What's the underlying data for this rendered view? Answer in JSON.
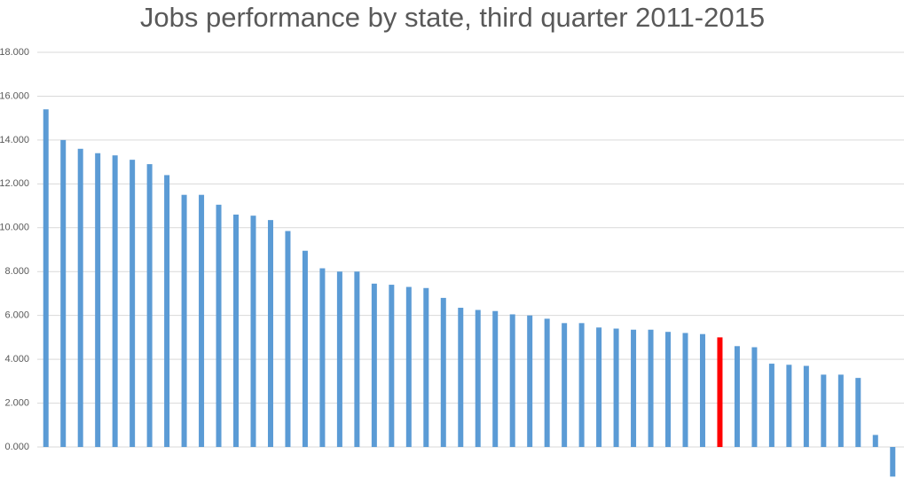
{
  "chart_data": {
    "type": "bar",
    "title": "Jobs performance by state, third quarter 2011-2015",
    "categories": [
      null,
      null,
      null,
      null,
      null,
      null,
      null,
      null,
      null,
      null,
      null,
      null,
      null,
      null,
      null,
      null,
      null,
      null,
      null,
      null,
      null,
      null,
      null,
      null,
      null,
      null,
      null,
      null,
      null,
      null,
      null,
      null,
      null,
      null,
      null,
      null,
      null,
      null,
      null,
      null,
      null,
      null,
      null,
      null,
      null,
      null,
      null,
      null,
      null,
      null
    ],
    "values": [
      15400,
      14000,
      13600,
      13400,
      13300,
      13100,
      12900,
      12400,
      11500,
      11500,
      11050,
      10600,
      10550,
      10350,
      9850,
      8950,
      8150,
      8000,
      8000,
      7450,
      7400,
      7300,
      7250,
      6800,
      6350,
      6250,
      6200,
      6050,
      6000,
      5850,
      5650,
      5650,
      5450,
      5400,
      5350,
      5350,
      5250,
      5200,
      5150,
      5000,
      4600,
      4550,
      3800,
      3750,
      3700,
      3300,
      3300,
      3150,
      550,
      -1350
    ],
    "colors": [
      "#5b9bd5",
      "#5b9bd5",
      "#5b9bd5",
      "#5b9bd5",
      "#5b9bd5",
      "#5b9bd5",
      "#5b9bd5",
      "#5b9bd5",
      "#5b9bd5",
      "#5b9bd5",
      "#5b9bd5",
      "#5b9bd5",
      "#5b9bd5",
      "#5b9bd5",
      "#5b9bd5",
      "#5b9bd5",
      "#5b9bd5",
      "#5b9bd5",
      "#5b9bd5",
      "#5b9bd5",
      "#5b9bd5",
      "#5b9bd5",
      "#5b9bd5",
      "#5b9bd5",
      "#5b9bd5",
      "#5b9bd5",
      "#5b9bd5",
      "#5b9bd5",
      "#5b9bd5",
      "#5b9bd5",
      "#5b9bd5",
      "#5b9bd5",
      "#5b9bd5",
      "#5b9bd5",
      "#5b9bd5",
      "#5b9bd5",
      "#5b9bd5",
      "#5b9bd5",
      "#5b9bd5",
      "#ff0000",
      "#5b9bd5",
      "#5b9bd5",
      "#5b9bd5",
      "#5b9bd5",
      "#5b9bd5",
      "#5b9bd5",
      "#5b9bd5",
      "#5b9bd5",
      "#5b9bd5",
      "#5b9bd5"
    ],
    "ylim": [
      -1500,
      18000
    ],
    "yticks": [
      {
        "value": 0,
        "label": "0.000"
      },
      {
        "value": 2000,
        "label": "2.000"
      },
      {
        "value": 4000,
        "label": "4.000"
      },
      {
        "value": 6000,
        "label": "6.000"
      },
      {
        "value": 8000,
        "label": "8.000"
      },
      {
        "value": 10000,
        "label": "10.000"
      },
      {
        "value": 12000,
        "label": "12.000"
      },
      {
        "value": 14000,
        "label": "14.000"
      },
      {
        "value": 16000,
        "label": "16.000"
      },
      {
        "value": 18000,
        "label": "18.000"
      }
    ],
    "grid": true
  }
}
